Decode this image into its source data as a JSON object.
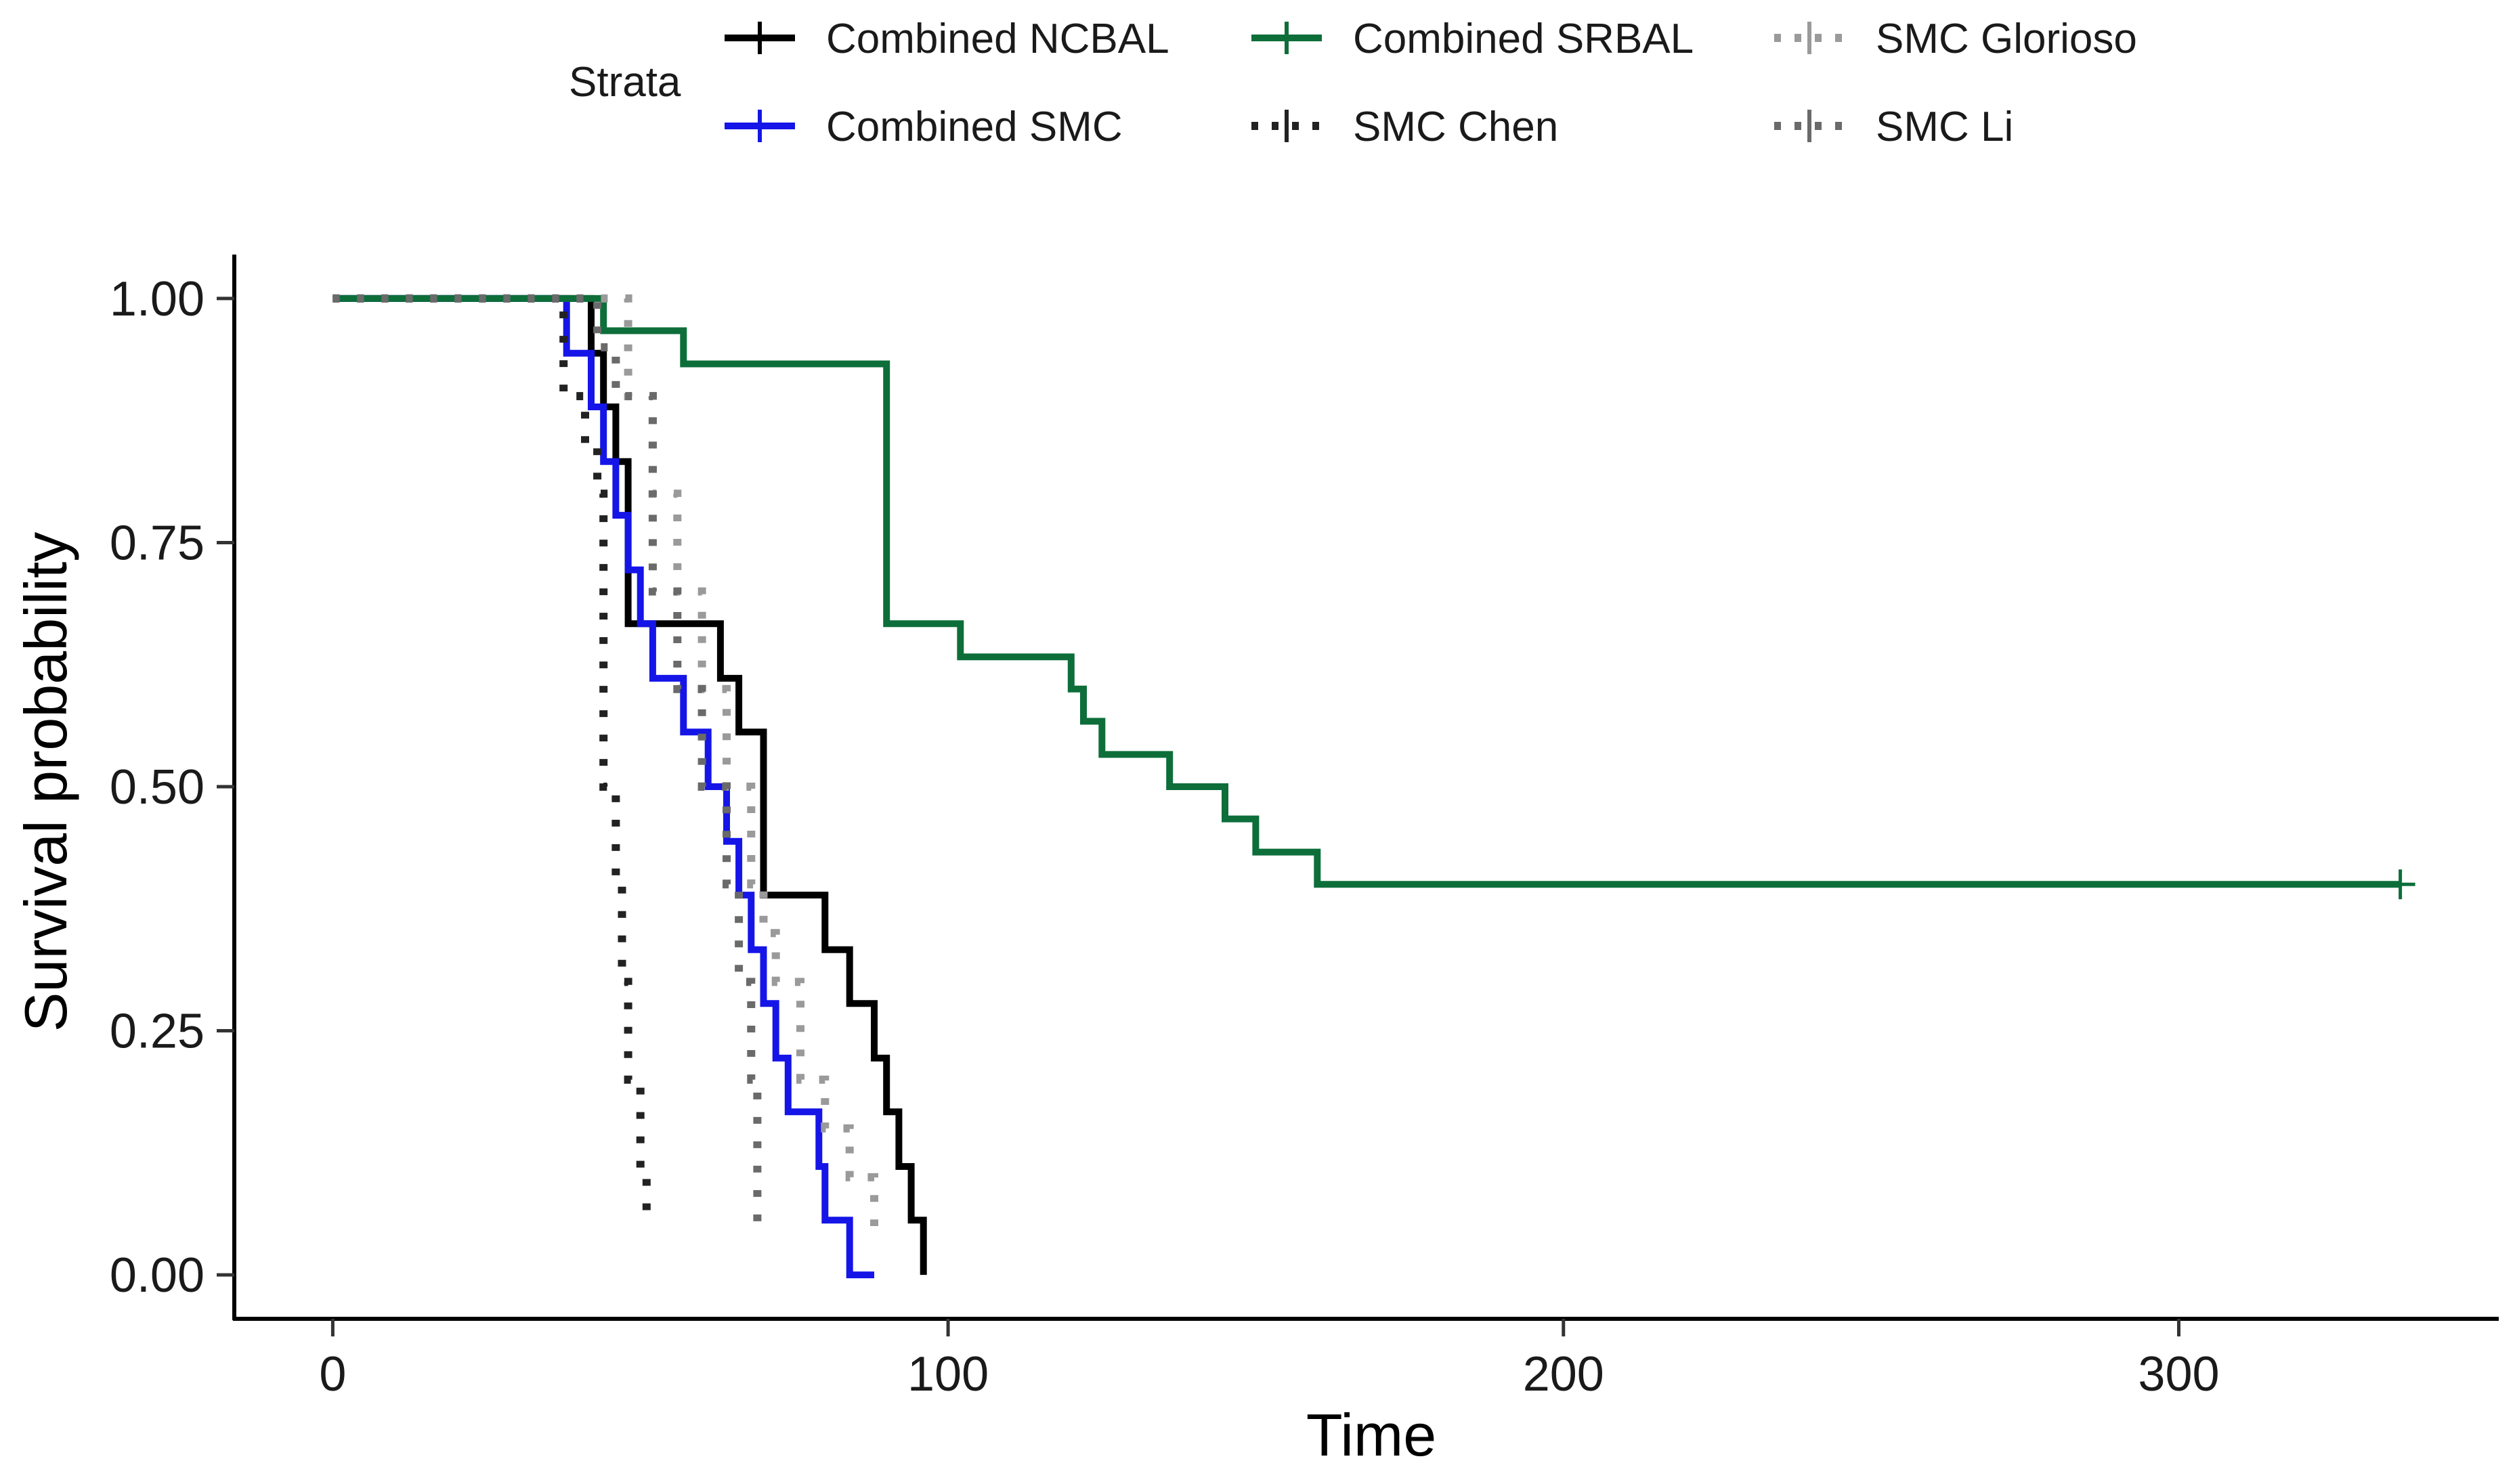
{
  "chart_data": {
    "type": "line",
    "subtype": "kaplan-meier",
    "title": "",
    "xlabel": "Time",
    "ylabel": "Survival probability",
    "xlim": [
      -16,
      352
    ],
    "ylim": [
      -0.045,
      1.045
    ],
    "xticks": [
      0,
      100,
      200,
      300
    ],
    "xtick_labels": [
      "0",
      "100",
      "200",
      "300"
    ],
    "yticks": [
      0,
      0.25,
      0.5,
      0.75,
      1.0
    ],
    "ytick_labels": [
      "0.00",
      "0.25",
      "0.50",
      "0.75",
      "1.00"
    ],
    "grid": false,
    "legend": {
      "title": "Strata",
      "position": "top"
    },
    "series": [
      {
        "name": "Combined NCBAL",
        "color": "#000000",
        "style": "solid",
        "times": [
          0,
          42,
          44,
          46,
          48,
          63,
          66,
          70,
          80,
          84,
          88,
          90,
          92,
          94,
          96
        ],
        "survival": [
          1.0,
          0.944,
          0.889,
          0.833,
          0.667,
          0.611,
          0.556,
          0.389,
          0.333,
          0.278,
          0.222,
          0.167,
          0.111,
          0.056,
          0.0
        ],
        "censor_times": [],
        "censor_survival": []
      },
      {
        "name": "Combined SMC",
        "color": "#1515e8",
        "style": "solid",
        "times": [
          0,
          38,
          42,
          44,
          46,
          48,
          50,
          52,
          57,
          61,
          64,
          66,
          68,
          70,
          72,
          74,
          79,
          80,
          84,
          88
        ],
        "survival": [
          1.0,
          0.944,
          0.889,
          0.833,
          0.778,
          0.722,
          0.667,
          0.611,
          0.556,
          0.5,
          0.444,
          0.389,
          0.333,
          0.278,
          0.222,
          0.167,
          0.111,
          0.056,
          0.0,
          0.0
        ],
        "censor_times": [],
        "censor_survival": []
      },
      {
        "name": "Combined SRBAL",
        "color": "#0d6e3a",
        "style": "solid",
        "times": [
          0,
          44,
          57,
          58,
          90,
          102,
          120,
          122,
          125,
          136,
          145,
          150,
          160
        ],
        "survival": [
          1.0,
          0.967,
          0.933,
          0.933,
          0.667,
          0.633,
          0.6,
          0.567,
          0.533,
          0.5,
          0.467,
          0.433,
          0.4
        ],
        "end_time": 336,
        "censor_times": [
          336
        ],
        "censor_survival": [
          0.4
        ]
      },
      {
        "name": "SMC Chen",
        "color": "#222222",
        "style": "dotted",
        "times": [
          0,
          37.5,
          41,
          43,
          44,
          46,
          47,
          48,
          50,
          51
        ],
        "survival": [
          1.0,
          0.9,
          0.85,
          0.8,
          0.5,
          0.4,
          0.3,
          0.2,
          0.1,
          0.05
        ],
        "censor_times": [],
        "censor_survival": []
      },
      {
        "name": "SMC Glorioso",
        "color": "#9a9a9a",
        "style": "dotted",
        "times": [
          0,
          48,
          52,
          56,
          60,
          64,
          68,
          70,
          72,
          76,
          80,
          84,
          88
        ],
        "survival": [
          1.0,
          0.9,
          0.8,
          0.7,
          0.6,
          0.5,
          0.4,
          0.35,
          0.3,
          0.2,
          0.15,
          0.1,
          0.05
        ],
        "censor_times": [],
        "censor_survival": []
      },
      {
        "name": "SMC Li",
        "color": "#6a6a6a",
        "style": "dotted",
        "times": [
          0,
          43,
          46,
          52,
          56,
          60,
          64,
          66,
          68,
          69
        ],
        "survival": [
          1.0,
          0.95,
          0.9,
          0.7,
          0.6,
          0.5,
          0.4,
          0.3,
          0.2,
          0.05
        ],
        "censor_times": [],
        "censor_survival": []
      }
    ]
  }
}
